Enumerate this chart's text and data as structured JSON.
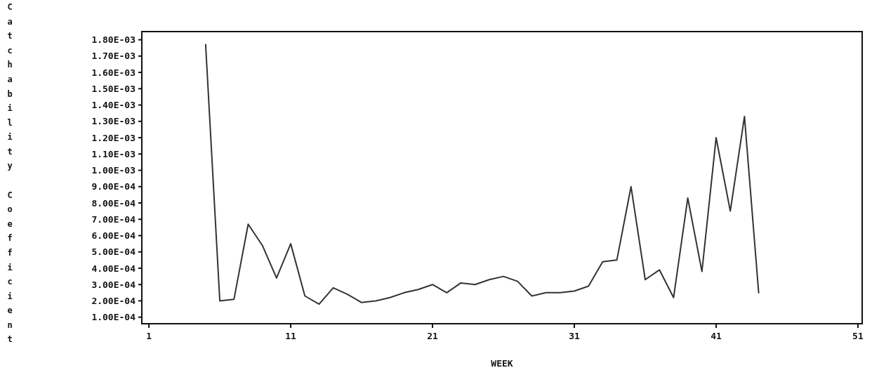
{
  "chart_data": {
    "type": "line",
    "xlabel": "WEEK",
    "ylabel": "Catchability Coefficient",
    "x": [
      5,
      6,
      7,
      8,
      9,
      10,
      11,
      12,
      13,
      14,
      15,
      16,
      17,
      18,
      19,
      20,
      21,
      22,
      23,
      24,
      25,
      26,
      27,
      28,
      29,
      30,
      31,
      32,
      33,
      34,
      35,
      36,
      37,
      38,
      39,
      40,
      41,
      42,
      43,
      44
    ],
    "series": [
      {
        "color": "#333333",
        "values": [
          0.00177,
          0.0002,
          0.00021,
          0.00067,
          0.00054,
          0.00034,
          0.00055,
          0.00023,
          0.00018,
          0.00028,
          0.00024,
          0.00019,
          0.0002,
          0.00022,
          0.00025,
          0.00027,
          0.0003,
          0.00025,
          0.00031,
          0.0003,
          0.00033,
          0.00035,
          0.00032,
          0.00023,
          0.00025,
          0.00025,
          0.00026,
          0.00029,
          0.00044,
          0.00045,
          0.0009,
          0.00033,
          0.00039,
          0.00022,
          0.00083,
          0.00038,
          0.0012,
          0.00075,
          0.00133,
          0.00025
        ]
      }
    ],
    "xlim": [
      0.5,
      51.3
    ],
    "xticks": [
      1,
      11,
      21,
      31,
      41,
      51
    ],
    "ylim": [
      6e-05,
      0.00185
    ],
    "yticks": [
      {
        "value": 0.0001,
        "label": "1.00E-04"
      },
      {
        "value": 0.0002,
        "label": "2.00E-04"
      },
      {
        "value": 0.0003,
        "label": "3.00E-04"
      },
      {
        "value": 0.0004,
        "label": "4.00E-04"
      },
      {
        "value": 0.0005,
        "label": "5.00E-04"
      },
      {
        "value": 0.0006,
        "label": "6.00E-04"
      },
      {
        "value": 0.0007,
        "label": "7.00E-04"
      },
      {
        "value": 0.0008,
        "label": "8.00E-04"
      },
      {
        "value": 0.0009,
        "label": "9.00E-04"
      },
      {
        "value": 0.001,
        "label": "1.00E-03"
      },
      {
        "value": 0.0011,
        "label": "1.10E-03"
      },
      {
        "value": 0.0012,
        "label": "1.20E-03"
      },
      {
        "value": 0.0013,
        "label": "1.30E-03"
      },
      {
        "value": 0.0014,
        "label": "1.40E-03"
      },
      {
        "value": 0.0015,
        "label": "1.50E-03"
      },
      {
        "value": 0.0016,
        "label": "1.60E-03"
      },
      {
        "value": 0.0017,
        "label": "1.70E-03"
      },
      {
        "value": 0.0018,
        "label": "1.80E-03"
      }
    ],
    "grid": false,
    "marker": "none",
    "line_style": "solid"
  }
}
